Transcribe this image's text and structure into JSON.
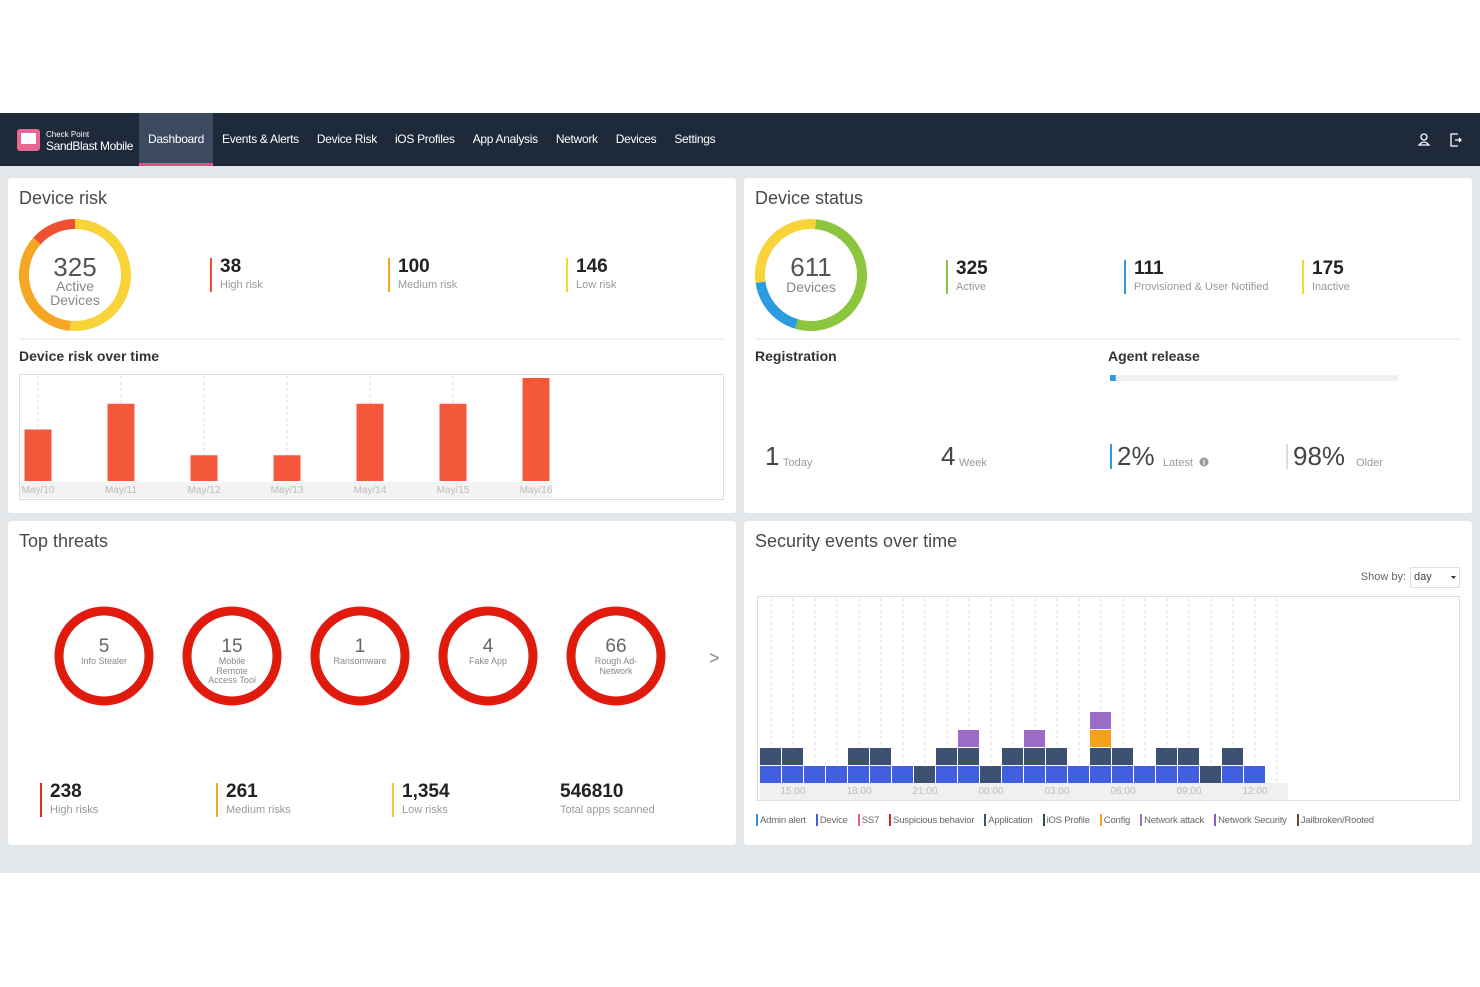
{
  "nav": {
    "brand_top": "Check Point",
    "brand": "SandBlast Mobile",
    "items": [
      "Dashboard",
      "Events & Alerts",
      "Device Risk",
      "iOS Profiles",
      "App Analysis",
      "Network",
      "Devices",
      "Settings"
    ],
    "active": 0
  },
  "device_risk": {
    "title": "Device risk",
    "total": 325,
    "total_label": "Active Devices",
    "stats": [
      {
        "value": 38,
        "label": "High risk",
        "color": "#f0502f"
      },
      {
        "value": 100,
        "label": "Medium risk",
        "color": "#f5a623"
      },
      {
        "value": 146,
        "label": "Low risk",
        "color": "#f8d43a"
      }
    ]
  },
  "device_status": {
    "title": "Device status",
    "total": 611,
    "total_label": "Devices",
    "stats": [
      {
        "value": 325,
        "label": "Active",
        "color": "#8cc63f"
      },
      {
        "value": 111,
        "label": "Provisioned & User Notified",
        "color": "#2d9be0"
      },
      {
        "value": 175,
        "label": "Inactive",
        "color": "#f8d43a"
      }
    ]
  },
  "registration": {
    "title": "Registration",
    "items": [
      {
        "value": 1,
        "label": "Today"
      },
      {
        "value": 4,
        "label": "Week"
      }
    ]
  },
  "agent_release": {
    "title": "Agent release",
    "items": [
      {
        "value": 2,
        "value_label": "2%",
        "label": "Latest",
        "color": "#2d9be0"
      },
      {
        "value": 98,
        "value_label": "98%",
        "label": "Older",
        "color": "#dddddd"
      }
    ]
  },
  "top_threats": {
    "title": "Top threats",
    "next": ">",
    "threats": [
      {
        "value": 5,
        "label": "Info Stealer"
      },
      {
        "value": 15,
        "label": "Mobile Remote Access Tool"
      },
      {
        "value": 1,
        "label": "Ransomware"
      },
      {
        "value": 4,
        "label": "Fake App"
      },
      {
        "value": 66,
        "label": "Rough Ad-Network"
      }
    ],
    "totals": [
      {
        "value": 238,
        "label": "High risks",
        "color": "#e8291c"
      },
      {
        "value": 261,
        "label": "Medium risks",
        "color": "#f5a623"
      },
      {
        "value": 1354,
        "value_label": "1,354",
        "label": "Low risks",
        "color": "#f8c53a"
      },
      {
        "value": 546810,
        "label": "Total apps scanned"
      }
    ]
  },
  "chart_data": [
    {
      "type": "bar",
      "title": "Device risk over time",
      "categories": [
        "May/10",
        "May/11",
        "May/12",
        "May/13",
        "May/14",
        "May/15",
        "May/16"
      ],
      "values": [
        2,
        3,
        1,
        1,
        3,
        3,
        4
      ],
      "color": "#f4583a",
      "grid": true
    },
    {
      "type": "stacked_bar",
      "title": "Security events over time",
      "show_by_label": "Show by:",
      "show_by": "day",
      "grid": true,
      "categories": [
        null,
        "15:00",
        null,
        null,
        "18:00",
        null,
        null,
        "21:00",
        null,
        null,
        "00:00",
        null,
        null,
        "03:00",
        null,
        null,
        "06:00",
        null,
        null,
        "09:00",
        null,
        null,
        "12:00",
        null
      ],
      "series": [
        {
          "name": "Admin alert",
          "color": "#2f8fe0",
          "values": [
            0,
            0,
            0,
            0,
            0,
            0,
            0,
            0,
            0,
            0,
            0,
            0,
            0,
            0,
            0,
            0,
            0,
            0,
            0,
            0,
            0,
            0,
            0,
            0
          ]
        },
        {
          "name": "Device",
          "color": "#3f5fe0",
          "values": [
            1,
            1,
            1,
            1,
            1,
            1,
            1,
            0,
            1,
            1,
            0,
            1,
            1,
            1,
            1,
            1,
            1,
            1,
            1,
            1,
            0,
            1,
            1,
            0
          ]
        },
        {
          "name": "SS7",
          "color": "#e05c9a",
          "values": [
            0,
            0,
            0,
            0,
            0,
            0,
            0,
            0,
            0,
            0,
            0,
            0,
            0,
            0,
            0,
            0,
            0,
            0,
            0,
            0,
            0,
            0,
            0,
            0
          ]
        },
        {
          "name": "Suspicious behavior",
          "color": "#d62b2b",
          "values": [
            0,
            0,
            0,
            0,
            0,
            0,
            0,
            0,
            0,
            0,
            0,
            0,
            0,
            0,
            0,
            0,
            0,
            0,
            0,
            0,
            0,
            0,
            0,
            0
          ]
        },
        {
          "name": "Application",
          "color": "#3d5273",
          "values": [
            1,
            1,
            0,
            0,
            1,
            1,
            0,
            1,
            1,
            1,
            1,
            1,
            1,
            1,
            0,
            1,
            1,
            0,
            1,
            1,
            1,
            1,
            0,
            0
          ]
        },
        {
          "name": "iOS Profile",
          "color": "#1f5e3a",
          "values": [
            0,
            0,
            0,
            0,
            0,
            0,
            0,
            0,
            0,
            0,
            0,
            0,
            0,
            0,
            0,
            0,
            0,
            0,
            0,
            0,
            0,
            0,
            0,
            0
          ]
        },
        {
          "name": "Config",
          "color": "#f5a21b",
          "values": [
            0,
            0,
            0,
            0,
            0,
            0,
            0,
            0,
            0,
            0,
            0,
            0,
            0,
            0,
            0,
            1,
            0,
            0,
            0,
            0,
            0,
            0,
            0,
            0
          ]
        },
        {
          "name": "Network attack",
          "color": "#9b6cc5",
          "values": [
            0,
            0,
            0,
            0,
            0,
            0,
            0,
            0,
            0,
            1,
            0,
            0,
            1,
            0,
            0,
            1,
            0,
            0,
            0,
            0,
            0,
            0,
            0,
            0
          ]
        },
        {
          "name": "Network Security",
          "color": "#8e5cc0",
          "values": [
            0,
            0,
            0,
            0,
            0,
            0,
            0,
            0,
            0,
            0,
            0,
            0,
            0,
            0,
            0,
            0,
            0,
            0,
            0,
            0,
            0,
            0,
            0,
            0
          ]
        },
        {
          "name": "Jailbroken/Rooted",
          "color": "#6b4a2a",
          "values": [
            0,
            0,
            0,
            0,
            0,
            0,
            0,
            0,
            0,
            0,
            0,
            0,
            0,
            0,
            0,
            0,
            0,
            0,
            0,
            0,
            0,
            0,
            0,
            0
          ]
        }
      ]
    }
  ]
}
